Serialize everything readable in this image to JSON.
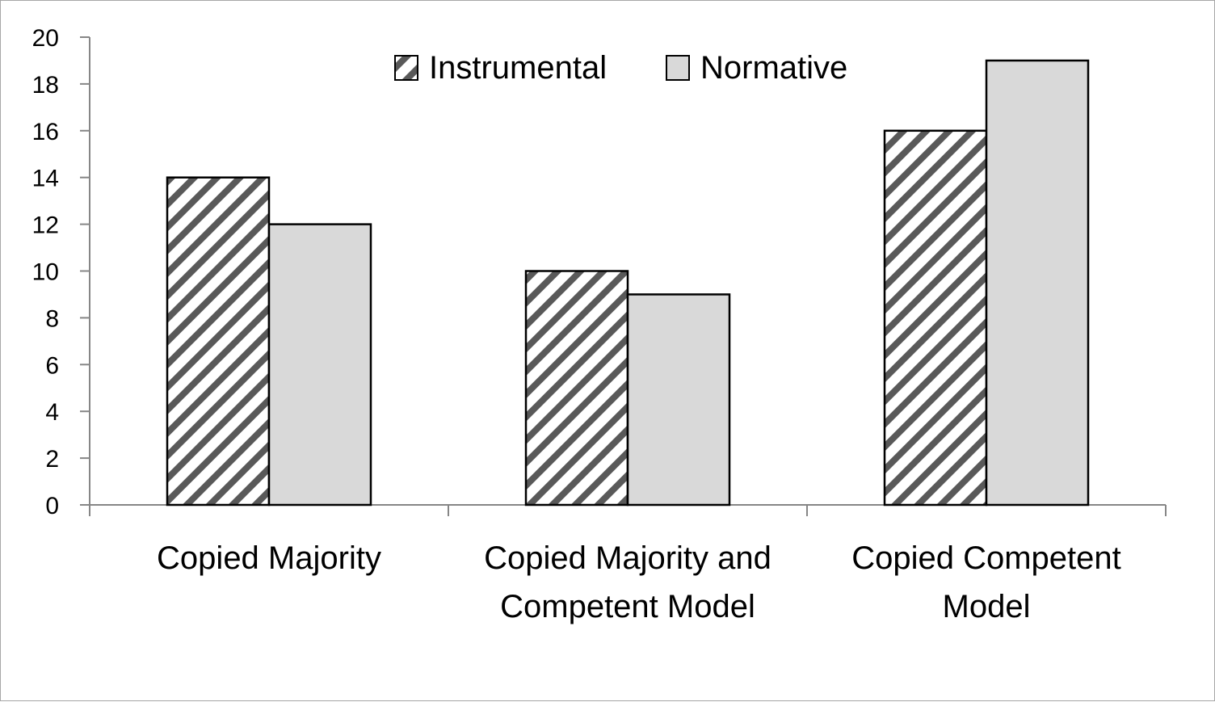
{
  "chart_data": {
    "type": "bar",
    "title": "",
    "xlabel": "",
    "ylabel": "",
    "ylim": [
      0,
      20
    ],
    "yticks": [
      "0",
      "2",
      "4",
      "6",
      "8",
      "10",
      "12",
      "14",
      "16",
      "18",
      "20"
    ],
    "categories": [
      [
        "Copied Majority"
      ],
      [
        "Copied Majority and",
        "Competent Model"
      ],
      [
        "Copied Competent",
        "Model"
      ]
    ],
    "series": [
      {
        "name": "Instrumental",
        "values": [
          14,
          10,
          16
        ],
        "fill": "hatch",
        "color": "#595959"
      },
      {
        "name": "Normative",
        "values": [
          12,
          9,
          19
        ],
        "fill": "solid",
        "color": "#d9d9d9"
      }
    ],
    "legend": {
      "position": "top-center"
    },
    "grid": false
  }
}
